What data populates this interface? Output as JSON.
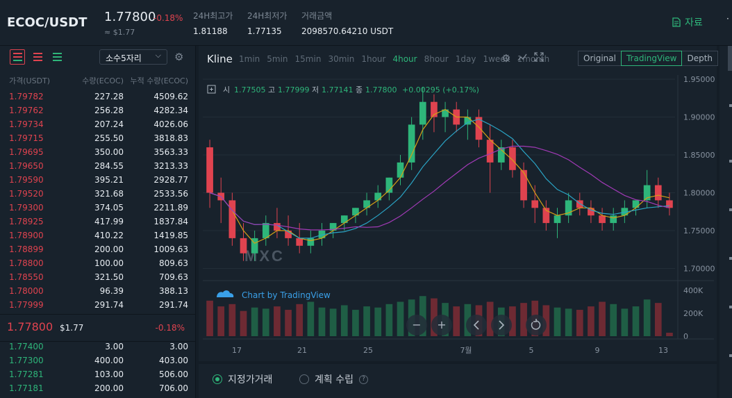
{
  "header": {
    "pair": "ECOC/USDT",
    "last_price": "1.77800",
    "change": "-0.18%",
    "usd_price": "≈ $1.77",
    "high_label": "24H최고가",
    "high_value": "1.81188",
    "low_label": "24H최저가",
    "low_value": "1.77135",
    "amount_label": "거래금액",
    "amount_value": "2098570.64210 USDT",
    "info_label": "자료"
  },
  "orderbook": {
    "decimal_option": "소수5자리",
    "col_price": "가격(USDT)",
    "col_amount": "수량(ECOC)",
    "col_total": "누적 수량(ECOC)",
    "asks": [
      {
        "price": "1.79782",
        "amount": "227.28",
        "total": "4509.62"
      },
      {
        "price": "1.79762",
        "amount": "256.28",
        "total": "4282.34"
      },
      {
        "price": "1.79734",
        "amount": "207.24",
        "total": "4026.06"
      },
      {
        "price": "1.79715",
        "amount": "255.50",
        "total": "3818.83"
      },
      {
        "price": "1.79695",
        "amount": "350.00",
        "total": "3563.33"
      },
      {
        "price": "1.79650",
        "amount": "284.55",
        "total": "3213.33"
      },
      {
        "price": "1.79590",
        "amount": "395.21",
        "total": "2928.77"
      },
      {
        "price": "1.79520",
        "amount": "321.68",
        "total": "2533.56"
      },
      {
        "price": "1.79300",
        "amount": "374.05",
        "total": "2211.89"
      },
      {
        "price": "1.78925",
        "amount": "417.99",
        "total": "1837.84"
      },
      {
        "price": "1.78900",
        "amount": "410.22",
        "total": "1419.85"
      },
      {
        "price": "1.78899",
        "amount": "200.00",
        "total": "1009.63"
      },
      {
        "price": "1.78800",
        "amount": "100.00",
        "total": "809.63"
      },
      {
        "price": "1.78550",
        "amount": "321.50",
        "total": "709.63"
      },
      {
        "price": "1.78000",
        "amount": "96.39",
        "total": "388.13"
      },
      {
        "price": "1.77999",
        "amount": "291.74",
        "total": "291.74"
      }
    ],
    "last": {
      "price": "1.77800",
      "usd": "$1.77",
      "change": "-0.18%"
    },
    "bids": [
      {
        "price": "1.77400",
        "amount": "3.00",
        "total": "3.00"
      },
      {
        "price": "1.77300",
        "amount": "400.00",
        "total": "403.00"
      },
      {
        "price": "1.77281",
        "amount": "103.00",
        "total": "506.00"
      },
      {
        "price": "1.77181",
        "amount": "200.00",
        "total": "706.00"
      }
    ]
  },
  "chart": {
    "title": "Kline",
    "intervals": [
      "1min",
      "5min",
      "15min",
      "30min",
      "1hour",
      "4hour",
      "8hour",
      "1day",
      "1week",
      "1month"
    ],
    "active_interval": "4hour",
    "views": [
      "Original",
      "TradingView",
      "Depth"
    ],
    "active_view": "TradingView",
    "ohlc": {
      "open_label": "시",
      "open": "1.77505",
      "high_label": "고",
      "high": "1.77999",
      "low_label": "저",
      "low": "1.77141",
      "close_label": "종",
      "close": "1.77800",
      "change": "+0.00295 (+0.17%)"
    },
    "watermark": "MXC",
    "credit": "Chart by TradingView",
    "price_ticks": [
      "1.95000",
      "1.90000",
      "1.85000",
      "1.80000",
      "1.75000",
      "1.70000"
    ],
    "volume_ticks": [
      "400K",
      "200K",
      "0"
    ],
    "x_ticks": [
      "17",
      "21",
      "25",
      "7월",
      "5",
      "9",
      "13"
    ],
    "colors": {
      "up": "#2eb67a",
      "down": "#e0434f",
      "ma_fast": "#d4a017",
      "ma_mid": "#2aa3c4",
      "ma_slow": "#a13ab6"
    }
  },
  "chart_data": {
    "type": "candlestick",
    "ylim": [
      1.7,
      1.95
    ],
    "volume_ylim": [
      0,
      400000
    ],
    "x_tick_labels": [
      "17",
      "21",
      "25",
      "7월",
      "5",
      "9",
      "13"
    ],
    "candles_approx": [
      [
        1.86,
        1.87,
        1.78,
        1.8
      ],
      [
        1.8,
        1.82,
        1.76,
        1.79
      ],
      [
        1.79,
        1.8,
        1.73,
        1.74
      ],
      [
        1.74,
        1.76,
        1.71,
        1.72
      ],
      [
        1.72,
        1.75,
        1.71,
        1.74
      ],
      [
        1.74,
        1.77,
        1.73,
        1.76
      ],
      [
        1.76,
        1.78,
        1.74,
        1.75
      ],
      [
        1.75,
        1.77,
        1.73,
        1.74
      ],
      [
        1.74,
        1.76,
        1.72,
        1.73
      ],
      [
        1.73,
        1.75,
        1.72,
        1.74
      ],
      [
        1.74,
        1.76,
        1.73,
        1.75
      ],
      [
        1.75,
        1.76,
        1.74,
        1.76
      ],
      [
        1.76,
        1.77,
        1.75,
        1.77
      ],
      [
        1.77,
        1.78,
        1.76,
        1.78
      ],
      [
        1.78,
        1.8,
        1.77,
        1.79
      ],
      [
        1.79,
        1.81,
        1.78,
        1.8
      ],
      [
        1.8,
        1.82,
        1.79,
        1.82
      ],
      [
        1.82,
        1.85,
        1.81,
        1.84
      ],
      [
        1.84,
        1.9,
        1.83,
        1.89
      ],
      [
        1.89,
        1.94,
        1.87,
        1.92
      ],
      [
        1.92,
        1.93,
        1.88,
        1.9
      ],
      [
        1.9,
        1.92,
        1.88,
        1.91
      ],
      [
        1.91,
        1.92,
        1.88,
        1.89
      ],
      [
        1.89,
        1.91,
        1.87,
        1.9
      ],
      [
        1.9,
        1.91,
        1.86,
        1.87
      ],
      [
        1.87,
        1.89,
        1.8,
        1.84
      ],
      [
        1.84,
        1.87,
        1.83,
        1.86
      ],
      [
        1.86,
        1.87,
        1.82,
        1.83
      ],
      [
        1.83,
        1.84,
        1.78,
        1.79
      ],
      [
        1.79,
        1.81,
        1.76,
        1.78
      ],
      [
        1.78,
        1.79,
        1.75,
        1.76
      ],
      [
        1.76,
        1.78,
        1.74,
        1.77
      ],
      [
        1.77,
        1.8,
        1.76,
        1.79
      ],
      [
        1.79,
        1.8,
        1.77,
        1.78
      ],
      [
        1.78,
        1.79,
        1.76,
        1.77
      ],
      [
        1.77,
        1.78,
        1.75,
        1.76
      ],
      [
        1.76,
        1.78,
        1.75,
        1.77
      ],
      [
        1.77,
        1.79,
        1.76,
        1.78
      ],
      [
        1.78,
        1.79,
        1.77,
        1.79
      ],
      [
        1.79,
        1.83,
        1.78,
        1.81
      ],
      [
        1.81,
        1.82,
        1.78,
        1.79
      ],
      [
        1.79,
        1.8,
        1.77,
        1.78
      ]
    ],
    "volume_approx": [
      310000,
      260000,
      280000,
      220000,
      250000,
      240000,
      260000,
      230000,
      280000,
      300000,
      250000,
      240000,
      270000,
      230000,
      260000,
      250000,
      280000,
      300000,
      320000,
      350000,
      330000,
      290000,
      260000,
      280000,
      270000,
      300000,
      250000,
      260000,
      290000,
      310000,
      270000,
      250000,
      240000,
      230000,
      260000,
      300000,
      280000,
      240000,
      260000,
      320000,
      290000,
      30000
    ]
  },
  "order_form": {
    "limit_label": "지정가거래",
    "plan_label": "계획 수립"
  }
}
